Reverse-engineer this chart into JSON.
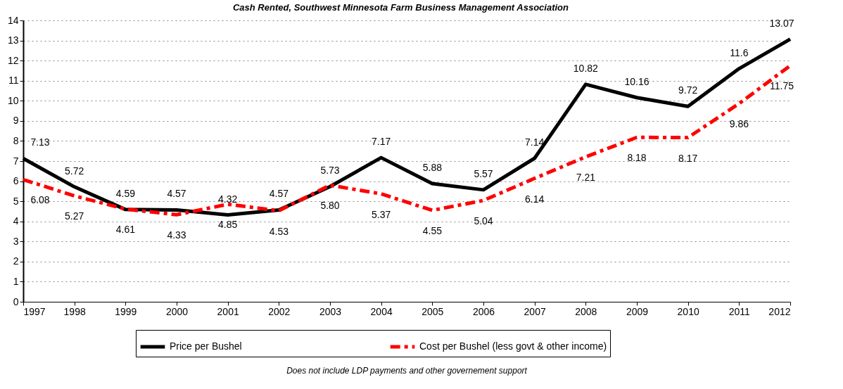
{
  "chart_data": {
    "type": "line",
    "title": "Cash Rented, Southwest Minnesota Farm Business Management Association",
    "categories": [
      "1997",
      "1998",
      "1999",
      "2000",
      "2001",
      "2002",
      "2003",
      "2004",
      "2005",
      "2006",
      "2007",
      "2008",
      "2009",
      "2010",
      "2011",
      "2012"
    ],
    "series": [
      {
        "name": "Price per Bushel",
        "color": "#000000",
        "line_style": "solid",
        "values": [
          7.13,
          5.72,
          4.59,
          4.57,
          4.32,
          4.57,
          5.73,
          7.17,
          5.88,
          5.57,
          7.14,
          10.82,
          10.16,
          9.72,
          11.6,
          13.07
        ],
        "value_labels": [
          "7.13",
          "5.72",
          "4.59",
          "4.57",
          "4.32",
          "4.57",
          "5.73",
          "7.17",
          "5.88",
          "5.57",
          "7.14",
          "10.82",
          "10.16",
          "9.72",
          "11.6",
          "13.07"
        ]
      },
      {
        "name": "Cost per Bushel (less govt & other income)",
        "color": "#ff0000",
        "line_style": "dashed",
        "values": [
          6.08,
          5.27,
          4.61,
          4.33,
          4.85,
          4.53,
          5.8,
          5.37,
          4.55,
          5.04,
          6.14,
          7.21,
          8.18,
          8.17,
          9.86,
          11.75
        ],
        "value_labels": [
          "6.08",
          "5.27",
          "4.61",
          "4.33",
          "4.85",
          "4.53",
          "5.80",
          "5.37",
          "4.55",
          "5.04",
          "6.14",
          "7.21",
          "8.18",
          "8.17",
          "9.86",
          "11.75"
        ]
      }
    ],
    "ylim": [
      0,
      14
    ],
    "yticks": [
      0,
      1,
      2,
      3,
      4,
      5,
      6,
      7,
      8,
      9,
      10,
      11,
      12,
      13,
      14
    ],
    "grid": "y",
    "legend": "bottom",
    "marker": "none",
    "annotations": [
      "Does not include LDP payments and other governement support"
    ]
  }
}
